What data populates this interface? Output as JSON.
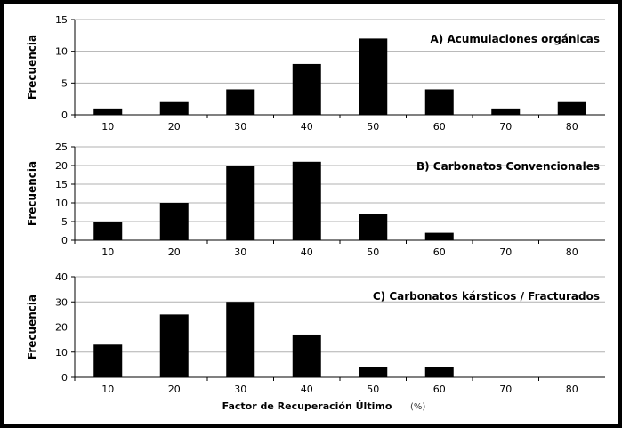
{
  "figure": {
    "xlabel": "Factor de Recuperación Último",
    "xlabel_unit": "(%)"
  },
  "colors": {
    "bar": "#000000",
    "grid": "#b0b0b0",
    "axis": "#000000",
    "frame": "#000000"
  },
  "chart_data": [
    {
      "type": "bar",
      "title": "A) Acumulaciones orgánicas",
      "ylabel": "Frecuencia",
      "categories": [
        "10",
        "20",
        "30",
        "40",
        "50",
        "60",
        "70",
        "80"
      ],
      "values": [
        1,
        2,
        4,
        8,
        12,
        4,
        1,
        2
      ],
      "ylim": [
        0,
        15
      ],
      "yticks": [
        0,
        5,
        10,
        15
      ],
      "grid": true
    },
    {
      "type": "bar",
      "title": "B) Carbonatos Convencionales",
      "ylabel": "Frecuencia",
      "categories": [
        "10",
        "20",
        "30",
        "40",
        "50",
        "60",
        "70",
        "80"
      ],
      "values": [
        5,
        10,
        20,
        21,
        7,
        2,
        0,
        0
      ],
      "ylim": [
        0,
        25
      ],
      "yticks": [
        0,
        5,
        10,
        15,
        20,
        25
      ],
      "grid": true
    },
    {
      "type": "bar",
      "title": "C) Carbonatos kársticos / Fracturados",
      "ylabel": "Frecuencia",
      "categories": [
        "10",
        "20",
        "30",
        "40",
        "50",
        "60",
        "70",
        "80"
      ],
      "values": [
        13,
        25,
        30,
        17,
        4,
        4,
        0,
        0
      ],
      "ylim": [
        0,
        40
      ],
      "yticks": [
        0,
        10,
        20,
        30,
        40
      ],
      "grid": true
    }
  ]
}
